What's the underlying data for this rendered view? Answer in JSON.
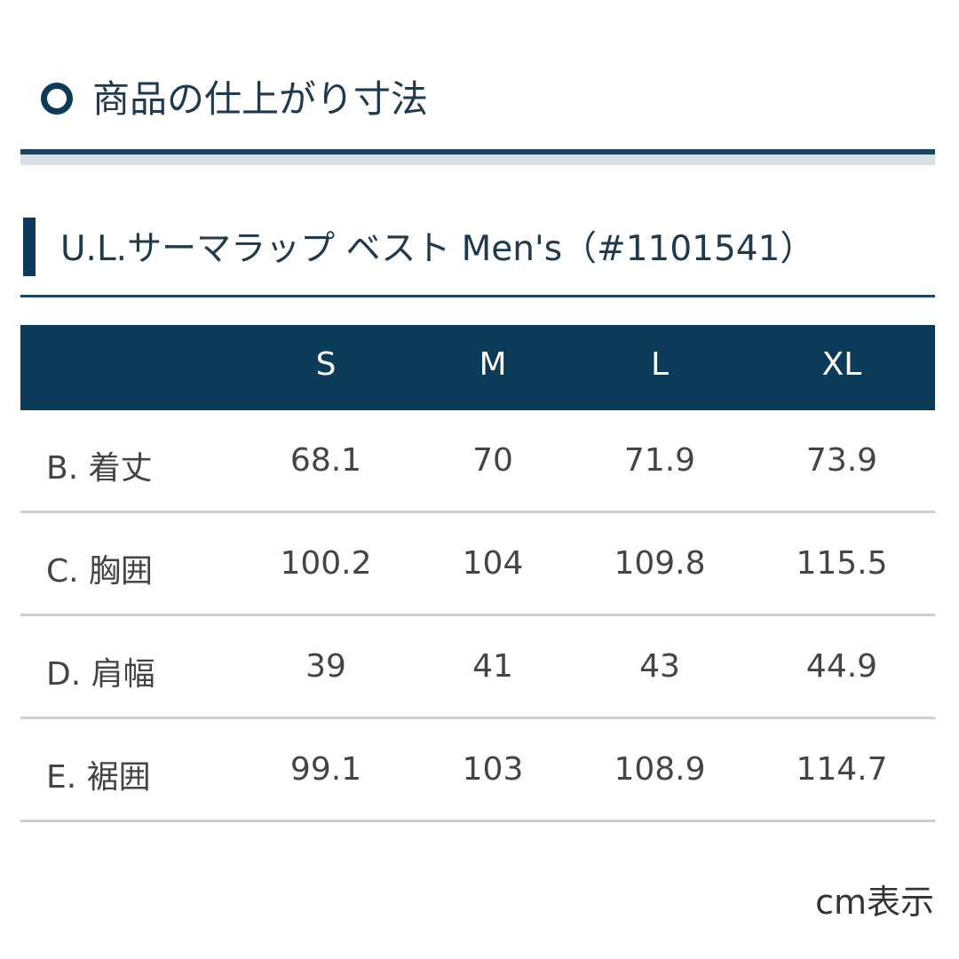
{
  "section_title": "商品の仕上がり寸法",
  "product_title": "U.L.サーマラップ ベスト Men's（#1101541）",
  "table": {
    "columns": [
      "S",
      "M",
      "L",
      "XL"
    ],
    "rows": [
      {
        "label": "B. 着丈",
        "values": [
          "68.1",
          "70",
          "71.9",
          "73.9"
        ]
      },
      {
        "label": "C. 胸囲",
        "values": [
          "100.2",
          "104",
          "109.8",
          "115.5"
        ]
      },
      {
        "label": "D. 肩幅",
        "values": [
          "39",
          "41",
          "43",
          "44.9"
        ]
      },
      {
        "label": "E. 裾囲",
        "values": [
          "99.1",
          "103",
          "108.9",
          "114.7"
        ]
      }
    ]
  },
  "unit_note": "cm表示",
  "colors": {
    "accent": "#0c3b5a",
    "band": "#d8dfe7",
    "divider": "#cfcfcf"
  }
}
